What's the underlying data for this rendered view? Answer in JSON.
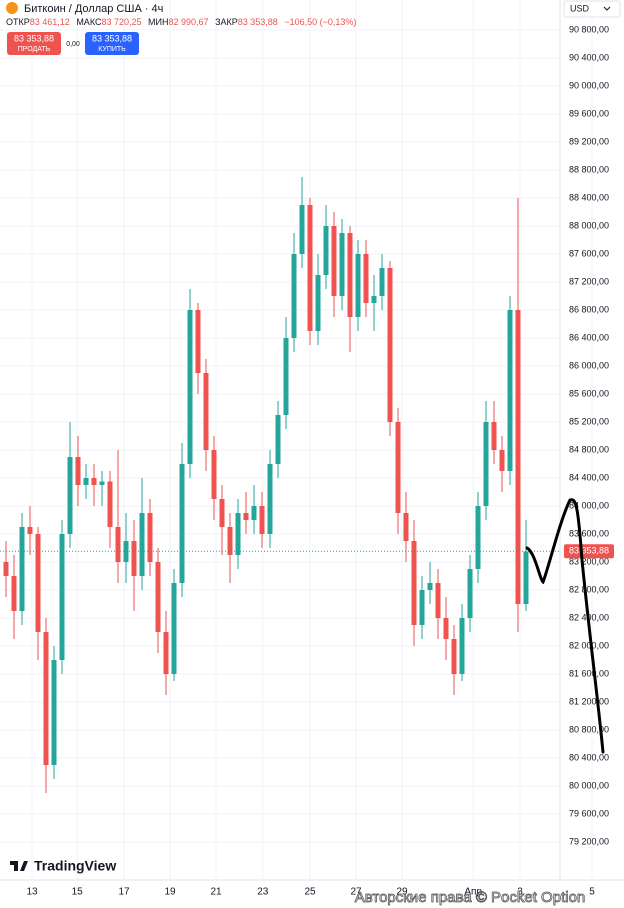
{
  "chart_data": {
    "type": "candlestick",
    "title": "Биткоин / Доллар США · 4ч",
    "ohlc_header": {
      "open_label": "ОТКР",
      "open": "83 461,12",
      "high_label": "МАКС",
      "high": "83 720,25",
      "low_label": "МИН",
      "low": "82 990,67",
      "close_label": "ЗАКР",
      "close": "83 353,88",
      "change": "−106,50 (−0,13%)"
    },
    "sell_button": {
      "price": "83 353,88",
      "label": "ПРОДАТЬ"
    },
    "spread": "0,00",
    "buy_button": {
      "price": "83 353,88",
      "label": "КУПИТЬ"
    },
    "currency": "USD",
    "logo": "TradingView",
    "watermark": "Авторские права © Pocket Option",
    "up_color": "#26a69a",
    "down_color": "#ef5350",
    "last_price": {
      "value": 83353.88,
      "label": "83 353,88"
    },
    "open": [
      83200,
      83000,
      82500,
      83700,
      83600,
      82200,
      80300,
      81800,
      83600,
      84700,
      84300,
      84400,
      84300,
      84350,
      83700,
      83200,
      83500,
      83000,
      83900,
      83200,
      82200,
      81600,
      82900,
      84600,
      86800,
      85900,
      84800,
      84100,
      83700,
      83300,
      83900,
      83800,
      84000,
      83600,
      84600,
      85300,
      86400,
      87600,
      88300,
      86500,
      87300,
      88000,
      87000,
      87900,
      86700,
      87600,
      86900,
      87000,
      87400,
      85200,
      83900,
      83500,
      82300,
      82800,
      82900,
      82400,
      82100,
      81600,
      82400,
      83100,
      84000,
      85200,
      84800,
      84500,
      86800,
      82600
    ],
    "high": [
      83500,
      83300,
      83900,
      84000,
      83700,
      82400,
      82000,
      83800,
      85200,
      85000,
      84600,
      84600,
      84500,
      84500,
      84800,
      83900,
      83800,
      84400,
      84100,
      83400,
      82500,
      83100,
      84900,
      87100,
      86900,
      86100,
      85000,
      84300,
      83900,
      84100,
      84200,
      84300,
      84200,
      84800,
      85500,
      86700,
      87900,
      88700,
      88400,
      87600,
      88300,
      88200,
      88100,
      88000,
      87800,
      87800,
      87300,
      87600,
      87500,
      85400,
      84200,
      83800,
      83000,
      83200,
      83100,
      82700,
      82300,
      82600,
      83300,
      84200,
      85500,
      85500,
      85000,
      87000,
      88400,
      83800
    ],
    "low": [
      82700,
      82100,
      82300,
      83300,
      81800,
      79900,
      80100,
      81600,
      83400,
      84000,
      84100,
      84000,
      84000,
      83400,
      82900,
      82900,
      82500,
      82800,
      83000,
      81900,
      81300,
      81500,
      82700,
      84400,
      85600,
      84500,
      83800,
      83300,
      82900,
      83100,
      83600,
      83600,
      83400,
      83400,
      84400,
      85100,
      86200,
      87400,
      86300,
      86300,
      87100,
      86700,
      86800,
      86200,
      86500,
      86700,
      86500,
      86800,
      85000,
      83600,
      83200,
      82000,
      82100,
      82600,
      82100,
      81800,
      81300,
      81500,
      82200,
      82900,
      83800,
      84600,
      84200,
      84300,
      82200,
      82500
    ],
    "close": [
      83000,
      82500,
      83700,
      83600,
      82200,
      80300,
      81800,
      83600,
      84700,
      84300,
      84400,
      84300,
      84350,
      83700,
      83200,
      83500,
      83000,
      83900,
      83200,
      82200,
      81600,
      82900,
      84600,
      86800,
      85900,
      84800,
      84100,
      83700,
      83300,
      83900,
      83800,
      84000,
      83600,
      84600,
      85300,
      86400,
      87600,
      88300,
      86500,
      87300,
      88000,
      87000,
      87900,
      86700,
      87600,
      86900,
      87000,
      87400,
      85200,
      83900,
      83500,
      82300,
      82800,
      82900,
      82400,
      82100,
      81600,
      82400,
      83100,
      84000,
      85200,
      84800,
      84500,
      86800,
      82600,
      83350
    ],
    "ylim": [
      78800,
      91000
    ],
    "yticks": [
      {
        "value": 79200,
        "label": "79 200,00"
      },
      {
        "value": 79600,
        "label": "79 600,00"
      },
      {
        "value": 80000,
        "label": "80 000,00"
      },
      {
        "value": 80400,
        "label": "80 400,00"
      },
      {
        "value": 80800,
        "label": "80 800,00"
      },
      {
        "value": 81200,
        "label": "81 200,00"
      },
      {
        "value": 81600,
        "label": "81 600,00"
      },
      {
        "value": 82000,
        "label": "82 000,00"
      },
      {
        "value": 82400,
        "label": "82 400,00"
      },
      {
        "value": 82800,
        "label": "82 800,00"
      },
      {
        "value": 83200,
        "label": "83 200,00"
      },
      {
        "value": 83600,
        "label": "83 600,00"
      },
      {
        "value": 84000,
        "label": "84 000,00"
      },
      {
        "value": 84400,
        "label": "84 400,00"
      },
      {
        "value": 84800,
        "label": "84 800,00"
      },
      {
        "value": 85200,
        "label": "85 200,00"
      },
      {
        "value": 85600,
        "label": "85 600,00"
      },
      {
        "value": 86000,
        "label": "86 000,00"
      },
      {
        "value": 86400,
        "label": "86 400,00"
      },
      {
        "value": 86800,
        "label": "86 800,00"
      },
      {
        "value": 87200,
        "label": "87 200,00"
      },
      {
        "value": 87600,
        "label": "87 600,00"
      },
      {
        "value": 88000,
        "label": "88 000,00"
      },
      {
        "value": 88400,
        "label": "88 400,00"
      },
      {
        "value": 88800,
        "label": "88 800,00"
      },
      {
        "value": 89200,
        "label": "89 200,00"
      },
      {
        "value": 89600,
        "label": "89 600,00"
      },
      {
        "value": 90000,
        "label": "90 000,00"
      },
      {
        "value": 90400,
        "label": "90 400,00"
      },
      {
        "value": 90800,
        "label": "90 800,00"
      }
    ],
    "xticks": [
      {
        "value": 3.25,
        "label": "13"
      },
      {
        "value": 8.9,
        "label": "15"
      },
      {
        "value": 14.75,
        "label": "17"
      },
      {
        "value": 20.5,
        "label": "19"
      },
      {
        "value": 26.25,
        "label": "21"
      },
      {
        "value": 32.1,
        "label": "23"
      },
      {
        "value": 38,
        "label": "25"
      },
      {
        "value": 43.75,
        "label": "27"
      },
      {
        "value": 49.5,
        "label": "29"
      },
      {
        "value": 58.4,
        "label": "Апр"
      },
      {
        "value": 64.25,
        "label": "3"
      },
      {
        "value": 73.25,
        "label": "5"
      }
    ],
    "grid": true
  }
}
